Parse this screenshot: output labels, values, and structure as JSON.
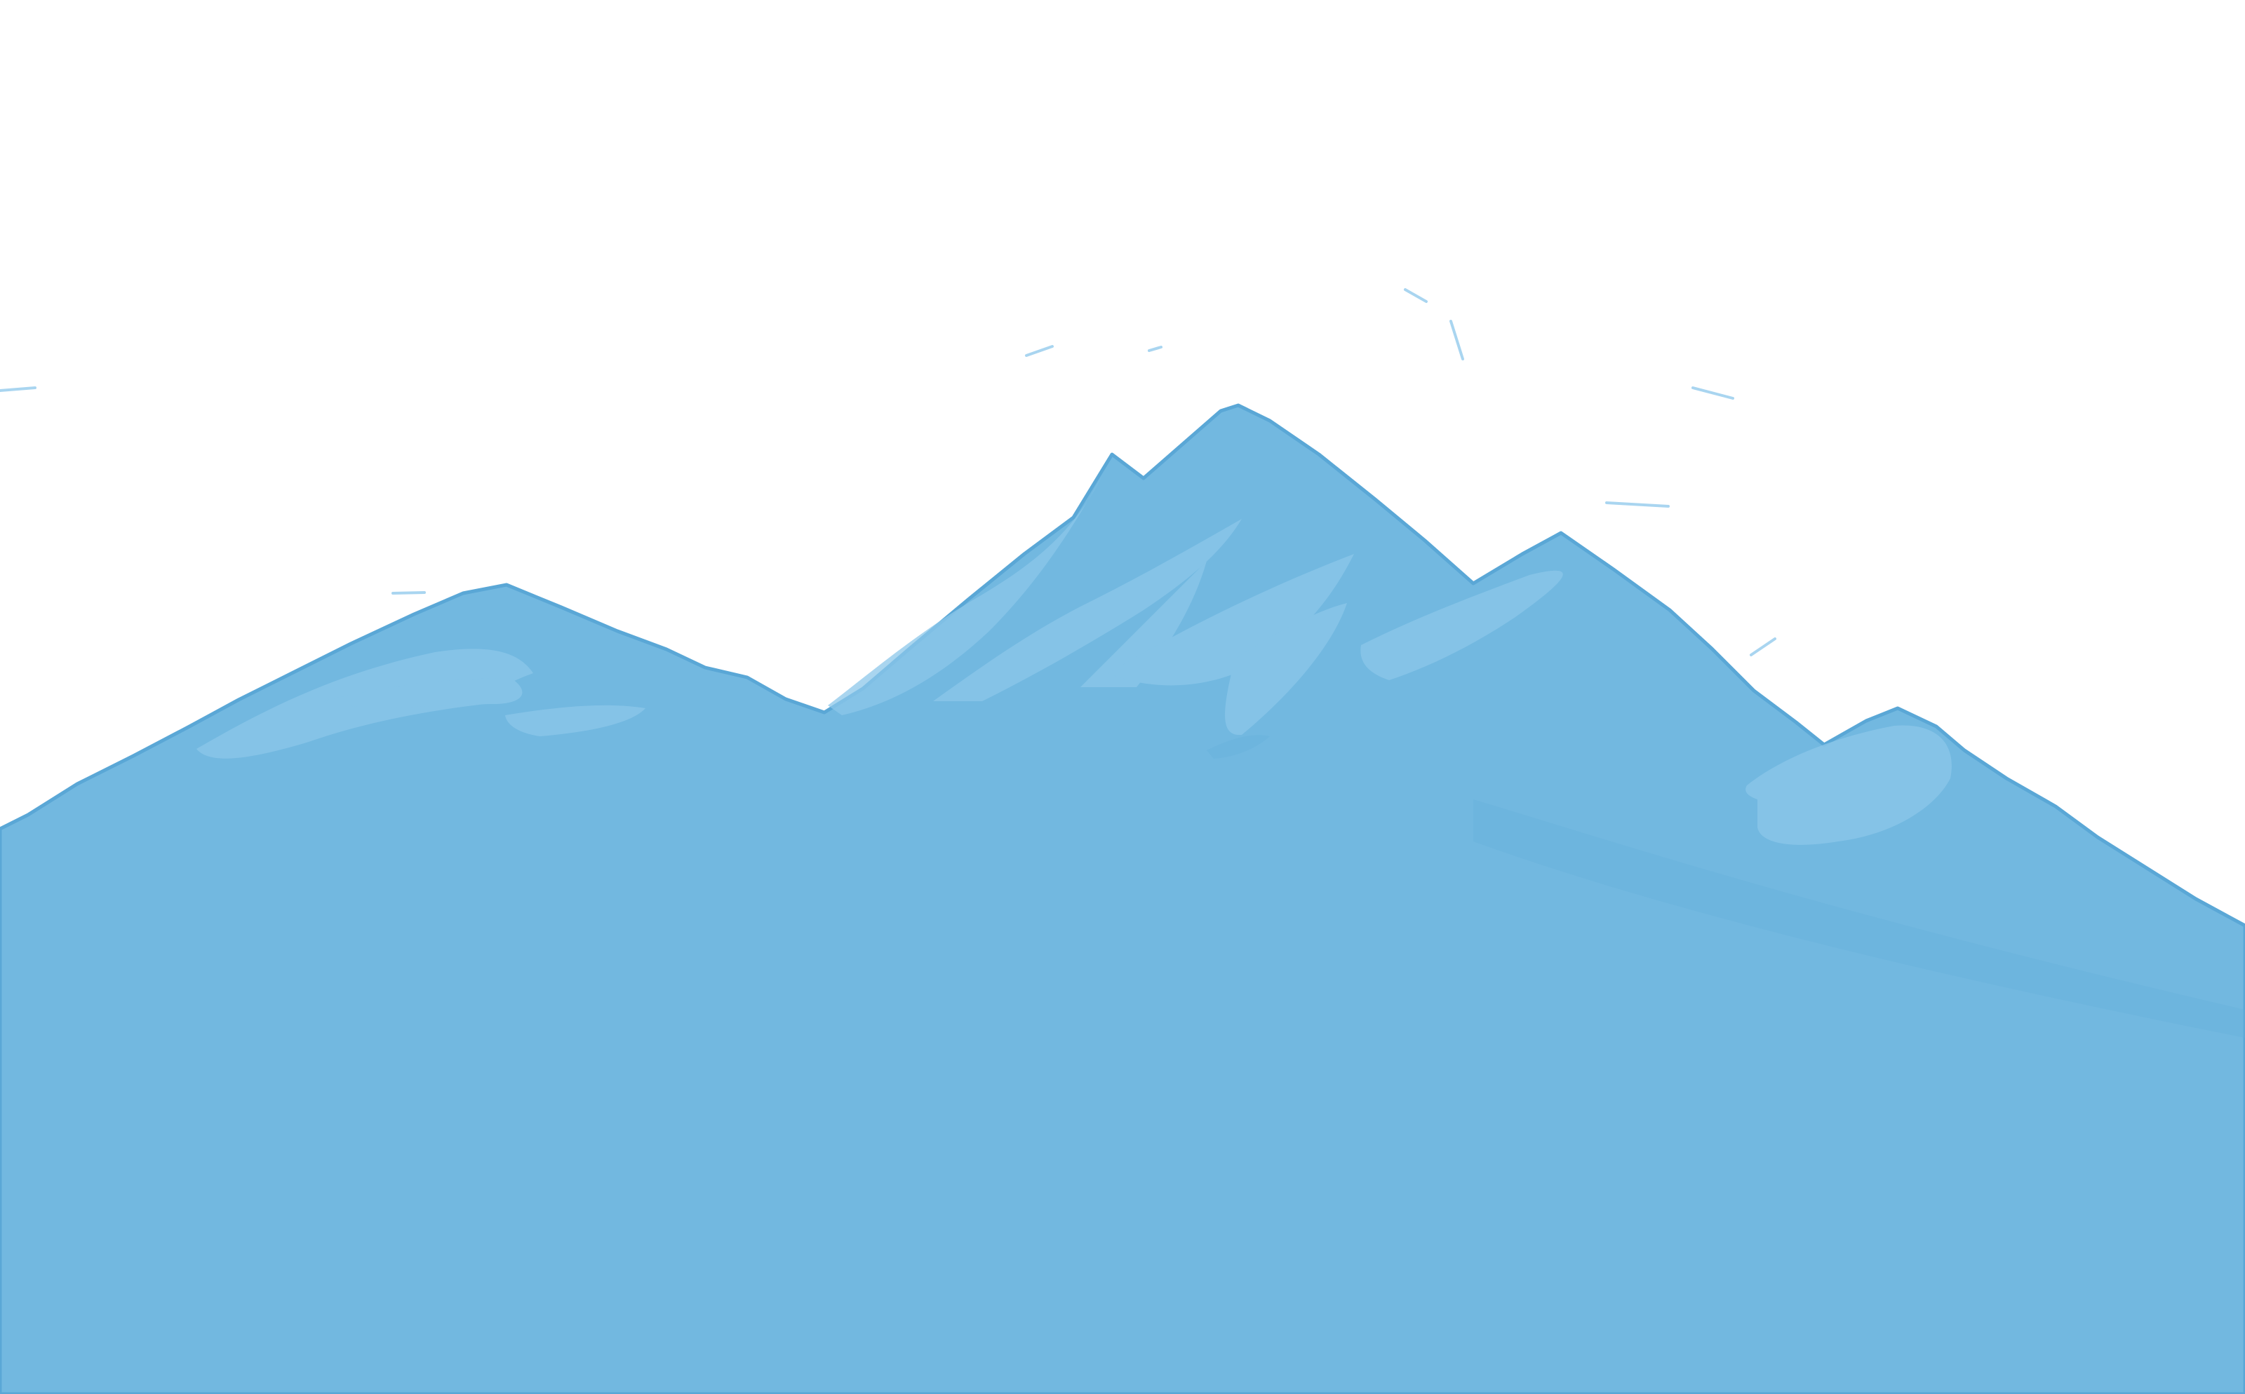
{
  "scene": {
    "subject": "mountain-range-illustration",
    "colors": {
      "sky": "#ffffff",
      "mountain": "#72b8e0",
      "ridge_edge": "#5aa7d6",
      "highlight": "#8cc7ea",
      "shadow": "#63aedb",
      "sketch_marks": "#a9d5f0"
    }
  }
}
